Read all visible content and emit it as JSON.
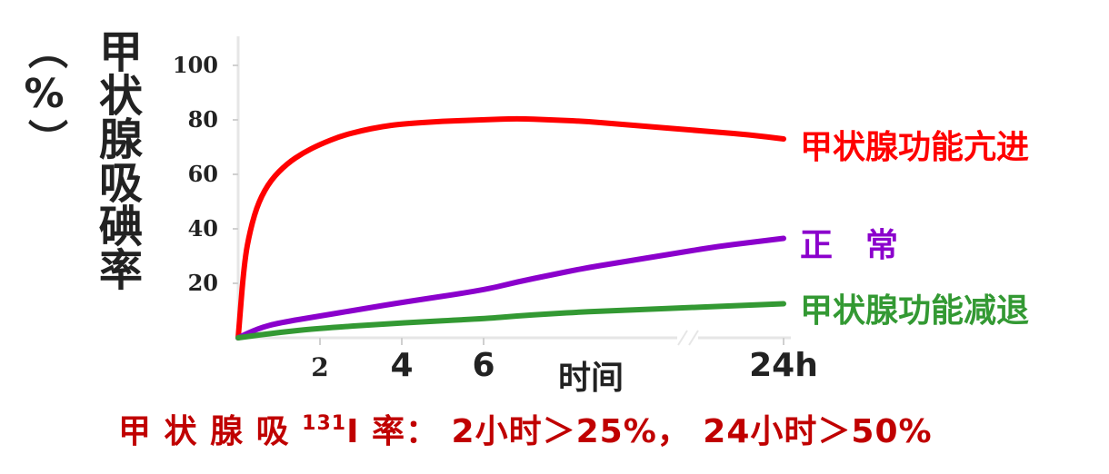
{
  "chart_data": {
    "type": "line",
    "ylabel_unit": "（%）",
    "ylabel": "甲状腺吸碘率",
    "xlabel": "时间",
    "y_ticks": [
      "100",
      "80",
      "60",
      "40",
      "20"
    ],
    "y_tick_values": [
      100,
      80,
      60,
      40,
      20
    ],
    "x_ticks": [
      {
        "label": "2",
        "value": 2
      },
      {
        "label": "4",
        "value": 4
      },
      {
        "label": "6",
        "value": 6
      },
      {
        "label": "24h",
        "value": 24
      }
    ],
    "ylim": [
      0,
      110
    ],
    "axis_break": "between 6 and 24",
    "series": [
      {
        "name": "甲状腺功能亢进",
        "color": "#ff0000",
        "points": [
          [
            0,
            0
          ],
          [
            0.15,
            28
          ],
          [
            0.3,
            40
          ],
          [
            0.5,
            50
          ],
          [
            0.8,
            58
          ],
          [
            1.2,
            64
          ],
          [
            1.6,
            68
          ],
          [
            2,
            71
          ],
          [
            2.5,
            74
          ],
          [
            3,
            76
          ],
          [
            3.5,
            77.5
          ],
          [
            4,
            78.5
          ],
          [
            5,
            79.5
          ],
          [
            6,
            80
          ],
          [
            8,
            80.5
          ],
          [
            10,
            80
          ],
          [
            12,
            79.5
          ],
          [
            14,
            78.5
          ],
          [
            16,
            77.5
          ],
          [
            18,
            76.5
          ],
          [
            20,
            75.5
          ],
          [
            22,
            74.5
          ],
          [
            24,
            73
          ]
        ]
      },
      {
        "name": "正　常",
        "color": "#8b00cc",
        "points": [
          [
            0,
            0
          ],
          [
            0.5,
            3.5
          ],
          [
            1,
            5.5
          ],
          [
            2,
            8
          ],
          [
            3,
            10.5
          ],
          [
            4,
            13
          ],
          [
            6,
            17.5
          ],
          [
            8,
            20.5
          ],
          [
            10,
            23
          ],
          [
            12,
            25.5
          ],
          [
            14,
            27.5
          ],
          [
            16,
            29.5
          ],
          [
            18,
            31.5
          ],
          [
            20,
            33.5
          ],
          [
            22,
            35
          ],
          [
            24,
            36.5
          ]
        ]
      },
      {
        "name": "甲状腺功能减退",
        "color": "#339933",
        "points": [
          [
            0,
            0
          ],
          [
            1,
            2
          ],
          [
            2,
            3.5
          ],
          [
            4,
            5.5
          ],
          [
            6,
            7
          ],
          [
            8,
            8
          ],
          [
            10,
            8.8
          ],
          [
            12,
            9.5
          ],
          [
            14,
            10
          ],
          [
            16,
            10.5
          ],
          [
            18,
            11
          ],
          [
            20,
            11.5
          ],
          [
            22,
            12
          ],
          [
            24,
            12.5
          ]
        ]
      }
    ]
  },
  "footer": {
    "prefix": "甲 状 腺 吸",
    "superscript": "131",
    "suffix": "I 率： 2小时＞25%， 24小时＞50%"
  }
}
